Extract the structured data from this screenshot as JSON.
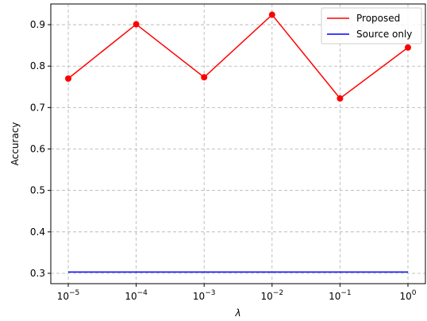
{
  "chart_data": {
    "type": "line",
    "x": [
      "10^-5",
      "10^-4",
      "10^-3",
      "10^-2",
      "10^-1",
      "10^0"
    ],
    "x_exponents": [
      -5,
      -4,
      -3,
      -2,
      -1,
      0
    ],
    "x_scale": "log",
    "series": [
      {
        "name": "Proposed",
        "color": "#ff0000",
        "marker": "circle",
        "values": [
          0.77,
          0.901,
          0.773,
          0.924,
          0.722,
          0.845
        ]
      },
      {
        "name": "Source only",
        "color": "#0000ff",
        "marker": "none",
        "values": [
          0.303,
          0.303,
          0.303,
          0.303,
          0.303,
          0.303
        ]
      }
    ],
    "xlabel": "λ",
    "ylabel": "Accuracy",
    "ylim": [
      0.275,
      0.95
    ],
    "yticks": [
      "0.3",
      "0.4",
      "0.5",
      "0.6",
      "0.7",
      "0.8",
      "0.9"
    ],
    "grid": true,
    "grid_style": "dashed",
    "legend_position": "top-right"
  }
}
